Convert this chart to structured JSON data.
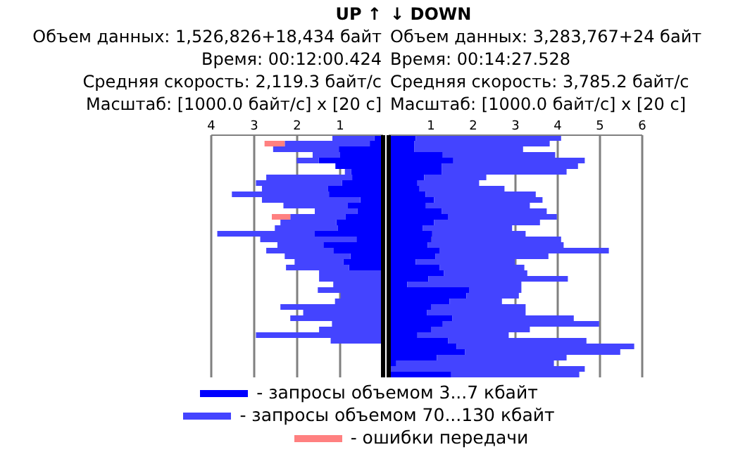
{
  "chart_data": [
    {
      "type": "bar",
      "orientation": "horizontal",
      "stacked": true,
      "title": "UP ↑",
      "annotations": [
        "Объем данных: 1,526,826+18,434 байт",
        "Время: 00:12:00.424",
        "Средняя скорость: 2,119.3 байт/с",
        "Масштаб: [1000.0 байт/с] x [20 с]"
      ],
      "categories": [
        null,
        null,
        null,
        null,
        null,
        null,
        null,
        null,
        null,
        null,
        null,
        null,
        null,
        null,
        null,
        null,
        null,
        null,
        null,
        null,
        null,
        null,
        null,
        null,
        null,
        null,
        null,
        null,
        null,
        null,
        null,
        null,
        null,
        null,
        null,
        null,
        null,
        null,
        null,
        null,
        null,
        null,
        null
      ],
      "xlim": [
        4,
        0
      ],
      "xticks": [
        4,
        3,
        2,
        1
      ],
      "grid": "x",
      "tick_labels": "x",
      "legend": "bottom",
      "series": [
        {
          "name": "- запросы объемом 3...7 кбайт",
          "color": "#0000ff",
          "values": [
            0.2,
            0.31,
            1.03,
            1.0,
            1.5,
            1.11,
            0.74,
            0.72,
            0.96,
            1.29,
            1.26,
            0.53,
            0.82,
            0.6,
            0.87,
            1.09,
            1.06,
            1.59,
            0.62,
            1.39,
            1.16,
            0.76,
            0.92,
            0.79,
            null,
            null,
            null,
            null,
            null,
            null,
            null,
            null,
            null,
            null,
            null,
            null,
            null,
            null,
            null,
            null,
            null,
            null,
            null
          ]
        },
        {
          "name": "- запросы объемом 70...130 кбайт",
          "color": "#4444ff",
          "values": [
            0.98,
            1.98,
            1.53,
            0.64,
            0.51,
            null,
            0.15,
            2.0,
            2.0,
            1.53,
            2.26,
            2.29,
            1.5,
            0.99,
            1.29,
            1.3,
            1.46,
            2.27,
            2.24,
            1.07,
            1.56,
            1.53,
            1.14,
            1.47,
            1.49,
            1.49,
            1.16,
            1.52,
            0.99,
            1.12,
            2.39,
            1.86,
            2.16,
            1.19,
            1.49,
            2.96,
            1.22,
            null,
            null,
            null,
            null,
            null,
            null
          ]
        },
        {
          "name": "- ошибки передачи",
          "color": "#ff8080",
          "values": [
            null,
            0.47,
            null,
            null,
            null,
            null,
            null,
            null,
            null,
            null,
            null,
            null,
            null,
            null,
            0.43,
            null,
            null,
            null,
            null,
            null,
            null,
            null,
            null,
            null,
            null,
            null,
            null,
            null,
            null,
            null,
            null,
            null,
            null,
            null,
            null,
            null,
            null,
            null,
            null,
            null,
            null,
            null,
            null
          ]
        }
      ]
    },
    {
      "type": "bar",
      "orientation": "horizontal",
      "stacked": true,
      "title": "↓ DOWN",
      "annotations": [
        "Объем данных: 3,283,767+24 байт",
        "Время: 00:14:27.528",
        "Средняя скорость: 3,785.2 байт/с",
        "Масштаб: [1000.0 байт/с] x [20 с]"
      ],
      "categories": [
        null,
        null,
        null,
        null,
        null,
        null,
        null,
        null,
        null,
        null,
        null,
        null,
        null,
        null,
        null,
        null,
        null,
        null,
        null,
        null,
        null,
        null,
        null,
        null,
        null,
        null,
        null,
        null,
        null,
        null,
        null,
        null,
        null,
        null,
        null,
        null,
        null,
        null,
        null,
        null,
        null,
        null,
        null
      ],
      "xlim": [
        0,
        6
      ],
      "xticks": [
        1,
        2,
        3,
        4,
        5,
        6
      ],
      "grid": "x",
      "tick_labels": "x",
      "series": [
        {
          "color": "#0000ff",
          "values": [
            0.64,
            0.61,
            0.61,
            1.28,
            1.53,
            1.26,
            1.26,
            0.84,
            0.68,
            0.73,
            0.87,
            1.07,
            0.88,
            1.26,
            1.4,
            1.07,
            0.81,
            1.03,
            1.01,
            0.92,
            1.2,
            1.11,
            0.64,
            1.21,
            1.31,
            0.94,
            0.44,
            1.9,
            1.84,
            1.44,
            1.0,
            0.91,
            1.51,
            1.28,
            1.0,
            0.68,
            1.41,
            1.61,
            1.81,
            1.14,
            0.18,
            null,
            1.48
          ]
        },
        {
          "color": "#4444ff",
          "values": [
            3.44,
            3.2,
            2.57,
            2.66,
            3.11,
            3.22,
            2.95,
            1.47,
            1.46,
            2.01,
            2.61,
            2.57,
            2.46,
            2.48,
            2.58,
            2.51,
            2.11,
            2.21,
            3.07,
            3.22,
            4.01,
            2.67,
            2.35,
            2.0,
            1.97,
            3.3,
            2.7,
            1.24,
            1.24,
            1.24,
            2.24,
            2.33,
            2.87,
            3.7,
            2.34,
            2.16,
            3.27,
            4.2,
            3.67,
            3.07,
            3.73,
            4.64,
            3.03
          ]
        }
      ]
    }
  ]
}
